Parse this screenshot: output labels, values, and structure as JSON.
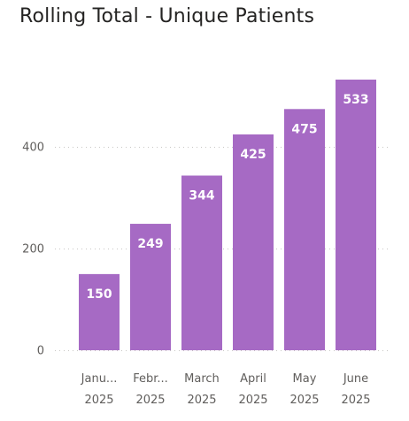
{
  "chart_data": {
    "type": "bar",
    "title": "Rolling Total - Unique Patients",
    "categories": [
      [
        "Janu...",
        "2025"
      ],
      [
        "Febr...",
        "2025"
      ],
      [
        "March",
        "2025"
      ],
      [
        "April",
        "2025"
      ],
      [
        "May",
        "2025"
      ],
      [
        "June",
        "2025"
      ]
    ],
    "values": [
      150,
      249,
      344,
      425,
      475,
      533
    ],
    "data_labels": [
      "150",
      "249",
      "344",
      "425",
      "475",
      "533"
    ],
    "y_ticks": [
      0,
      200,
      400
    ],
    "ylim": [
      0,
      533
    ],
    "grid": true,
    "legend": "none",
    "bar_color": "#a66ac4"
  }
}
